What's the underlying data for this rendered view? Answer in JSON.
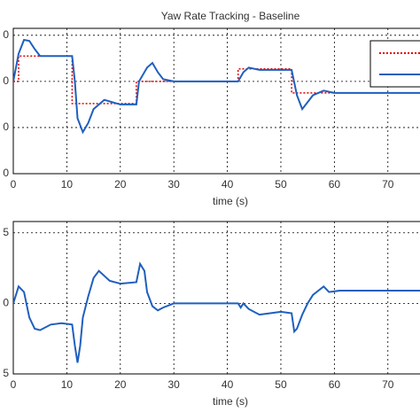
{
  "chart_data": [
    {
      "type": "line",
      "title": "Yaw Rate Tracking - Baseline",
      "x_label": "time (s)",
      "xlim": [
        0,
        76
      ],
      "xticks": [
        0,
        10,
        20,
        30,
        40,
        50,
        60,
        70
      ],
      "ylim": [
        -20,
        11.5
      ],
      "yticks": [
        {
          "value": 10,
          "label": "0"
        },
        {
          "value": 0,
          "label": "0"
        },
        {
          "value": -10,
          "label": "0"
        },
        {
          "value": -20,
          "label": "0"
        }
      ],
      "grid": true,
      "series": [
        {
          "color": "#e00000",
          "dash": "dotted",
          "x": [
            0,
            1,
            1,
            11,
            11,
            23,
            23,
            42,
            42,
            52,
            52,
            60
          ],
          "values": [
            0,
            0,
            5.5,
            5.5,
            -4.8,
            -4.8,
            0,
            0,
            2.7,
            2.7,
            -2.5,
            -2.5
          ]
        },
        {
          "color": "#1f5fbf",
          "dash": "solid",
          "x": [
            0,
            1,
            2,
            3,
            4,
            5,
            8,
            11,
            11.5,
            12,
            13,
            14,
            15,
            17,
            20,
            23,
            23.5,
            25,
            26,
            27,
            28,
            30,
            42,
            43,
            44,
            46,
            50,
            52,
            53,
            54,
            55,
            56,
            58,
            60,
            76
          ],
          "values": [
            0,
            6,
            9,
            8.8,
            7,
            5.5,
            5.5,
            5.5,
            0,
            -8,
            -11,
            -9,
            -6,
            -4,
            -5,
            -5,
            0,
            3,
            4,
            2,
            0.5,
            0,
            0,
            2,
            3,
            2.5,
            2.5,
            2.5,
            -3,
            -6,
            -4.5,
            -3,
            -2,
            -2.5,
            -2.5
          ]
        }
      ]
    },
    {
      "type": "line",
      "x_label": "time (s)",
      "xlim": [
        0,
        76
      ],
      "xticks": [
        0,
        10,
        20,
        30,
        40,
        50,
        60,
        70
      ],
      "ylim": [
        -5,
        5.8
      ],
      "yticks": [
        5,
        0,
        {
          "value": -5,
          "label": "5"
        }
      ],
      "grid": true,
      "series": [
        {
          "color": "#1f5fbf",
          "dash": "solid",
          "x": [
            0,
            1,
            2,
            3,
            4,
            5,
            7,
            9,
            11,
            11.5,
            12,
            12.5,
            13,
            14,
            15,
            16,
            18,
            20,
            23,
            23.7,
            24.5,
            25,
            26,
            27,
            28,
            30,
            42,
            42.5,
            43,
            44,
            46,
            48,
            50,
            52,
            52.5,
            53,
            54,
            55,
            56,
            57,
            58,
            59,
            61,
            76
          ],
          "values": [
            0,
            1.2,
            0.8,
            -1,
            -1.8,
            -1.9,
            -1.5,
            -1.4,
            -1.5,
            -3,
            -4.2,
            -3,
            -1,
            0.5,
            1.8,
            2.3,
            1.6,
            1.4,
            1.5,
            2.8,
            2.3,
            0.8,
            -0.2,
            -0.5,
            -0.3,
            0,
            0,
            -0.3,
            0,
            -0.4,
            -0.8,
            -0.7,
            -0.6,
            -0.7,
            -2,
            -1.8,
            -0.8,
            0,
            0.6,
            0.9,
            1.2,
            0.8,
            0.9,
            0.9
          ]
        }
      ]
    }
  ]
}
